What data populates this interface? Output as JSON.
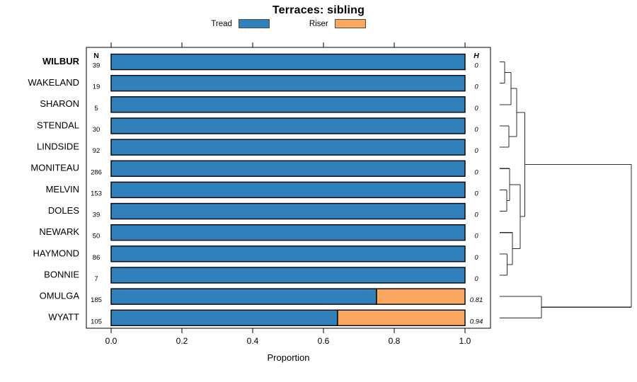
{
  "chart_data": {
    "type": "bar",
    "orientation": "horizontal",
    "stacked": true,
    "title": "Terraces: sibling",
    "xlabel": "Proportion",
    "xlim": [
      0,
      1
    ],
    "xticks": [
      0.0,
      0.2,
      0.4,
      0.6,
      0.8,
      1.0
    ],
    "grid": false,
    "legend_position": "top",
    "legend": [
      {
        "label": "Tread",
        "color": "#3080BC"
      },
      {
        "label": "Riser",
        "color": "#FAA85F"
      }
    ],
    "col_headers": {
      "n": "N",
      "h": "H"
    },
    "rows": [
      {
        "label": "WILBUR",
        "bold": true,
        "n": 39,
        "tread": 1.0,
        "riser": 0.0,
        "h": "0"
      },
      {
        "label": "WAKELAND",
        "bold": false,
        "n": 19,
        "tread": 1.0,
        "riser": 0.0,
        "h": "0"
      },
      {
        "label": "SHARON",
        "bold": false,
        "n": 5,
        "tread": 1.0,
        "riser": 0.0,
        "h": "0"
      },
      {
        "label": "STENDAL",
        "bold": false,
        "n": 30,
        "tread": 1.0,
        "riser": 0.0,
        "h": "0"
      },
      {
        "label": "LINDSIDE",
        "bold": false,
        "n": 92,
        "tread": 1.0,
        "riser": 0.0,
        "h": "0"
      },
      {
        "label": "MONITEAU",
        "bold": false,
        "n": 286,
        "tread": 1.0,
        "riser": 0.0,
        "h": "0"
      },
      {
        "label": "MELVIN",
        "bold": false,
        "n": 153,
        "tread": 1.0,
        "riser": 0.0,
        "h": "0"
      },
      {
        "label": "DOLES",
        "bold": false,
        "n": 39,
        "tread": 1.0,
        "riser": 0.0,
        "h": "0"
      },
      {
        "label": "NEWARK",
        "bold": false,
        "n": 50,
        "tread": 1.0,
        "riser": 0.0,
        "h": "0"
      },
      {
        "label": "HAYMOND",
        "bold": false,
        "n": 86,
        "tread": 1.0,
        "riser": 0.0,
        "h": "0"
      },
      {
        "label": "BONNIE",
        "bold": false,
        "n": 7,
        "tread": 1.0,
        "riser": 0.0,
        "h": "0"
      },
      {
        "label": "OMULGA",
        "bold": false,
        "n": 185,
        "tread": 0.75,
        "riser": 0.25,
        "h": "0.81"
      },
      {
        "label": "WYATT",
        "bold": false,
        "n": 105,
        "tread": 0.64,
        "riser": 0.36,
        "h": "0.94"
      }
    ],
    "dendrogram": {
      "note": "right-side dendrogram, heights are fractions of root height (no scale shown)",
      "merges": [
        {
          "id": "m1",
          "children": [
            "WILBUR",
            "WAKELAND"
          ],
          "height": 0.038
        },
        {
          "id": "m2",
          "children": [
            "m1",
            "SHARON"
          ],
          "height": 0.086
        },
        {
          "id": "m3",
          "children": [
            "STENDAL",
            "LINDSIDE"
          ],
          "height": 0.07
        },
        {
          "id": "m4",
          "children": [
            "m2",
            "m3"
          ],
          "height": 0.129
        },
        {
          "id": "m5",
          "children": [
            "MELVIN",
            "DOLES"
          ],
          "height": 0.054
        },
        {
          "id": "m6",
          "children": [
            "MONITEAU",
            "m5"
          ],
          "height": 0.075
        },
        {
          "id": "m7",
          "children": [
            "HAYMOND",
            "BONNIE"
          ],
          "height": 0.056
        },
        {
          "id": "m8",
          "children": [
            "NEWARK",
            "m7"
          ],
          "height": 0.097
        },
        {
          "id": "m9",
          "children": [
            "m6",
            "m8"
          ],
          "height": 0.156
        },
        {
          "id": "m10",
          "children": [
            "m4",
            "m9"
          ],
          "height": 0.191
        },
        {
          "id": "m11",
          "children": [
            "OMULGA",
            "WYATT"
          ],
          "height": 0.317
        },
        {
          "id": "root",
          "children": [
            "m10",
            "m11"
          ],
          "height": 1.0
        }
      ]
    }
  }
}
